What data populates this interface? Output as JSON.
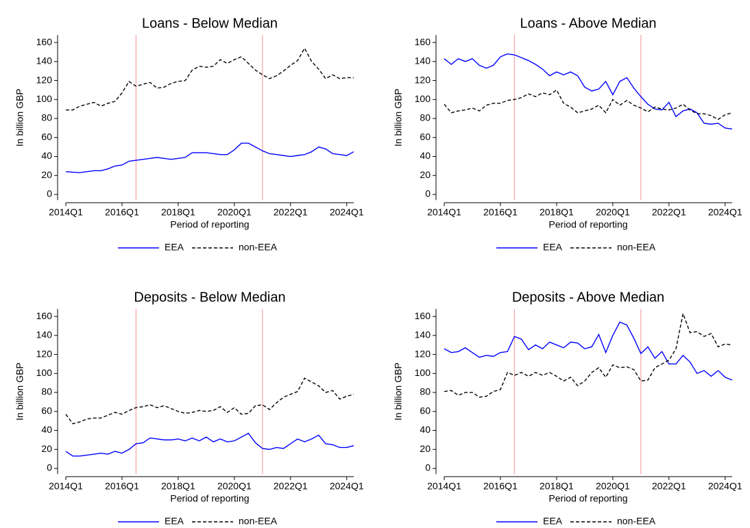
{
  "chart_data": [
    {
      "type": "line",
      "title": "Loans - Below Median",
      "xlabel": "Period of reporting",
      "ylabel": "In billion GBP",
      "x": [
        2014,
        2014.25,
        2014.5,
        2014.75,
        2015,
        2015.25,
        2015.5,
        2015.75,
        2016,
        2016.25,
        2016.5,
        2016.75,
        2017,
        2017.25,
        2017.5,
        2017.75,
        2018,
        2018.25,
        2018.5,
        2018.75,
        2019,
        2019.25,
        2019.5,
        2019.75,
        2020,
        2020.25,
        2020.5,
        2020.75,
        2021,
        2021.25,
        2021.5,
        2021.75,
        2022,
        2022.25,
        2022.5,
        2022.75,
        2023,
        2023.25,
        2023.5,
        2023.75,
        2024,
        2024.25
      ],
      "series": [
        {
          "name": "EEA",
          "color": "#0000ff",
          "linestyle": "solid",
          "values": [
            24,
            23.5,
            23,
            24,
            25,
            25,
            27,
            30,
            31,
            35,
            36,
            37,
            38,
            39,
            38,
            37,
            38,
            39,
            44,
            44,
            44,
            43,
            42,
            42,
            47,
            54,
            54,
            50,
            46,
            43,
            42,
            41,
            40,
            41,
            42,
            45,
            50,
            48,
            43,
            42,
            41,
            45
          ]
        },
        {
          "name": "non-EEA",
          "color": "#000000",
          "linestyle": "dashed",
          "values": [
            89,
            89,
            93,
            95,
            97,
            93,
            96,
            98,
            107,
            119,
            114,
            116,
            118,
            112,
            113,
            117,
            119,
            120,
            131,
            135,
            134,
            135,
            142,
            138,
            142,
            145,
            138,
            131,
            126,
            122,
            125,
            130,
            136,
            141,
            154,
            140,
            132,
            122,
            126,
            122,
            123,
            123
          ]
        }
      ],
      "xlim": [
        2014,
        2024.25
      ],
      "xticks": [
        {
          "value": 2014,
          "label": "2014Q1"
        },
        {
          "value": 2016,
          "label": "2016Q1"
        },
        {
          "value": 2018,
          "label": "2018Q1"
        },
        {
          "value": 2020,
          "label": "2020Q1"
        },
        {
          "value": 2022,
          "label": "2022Q1"
        },
        {
          "value": 2024,
          "label": "2024Q1"
        }
      ],
      "ylim": [
        -6,
        168
      ],
      "yticks": [
        0,
        20,
        40,
        60,
        80,
        100,
        120,
        140,
        160
      ],
      "vlines": [
        2016.5,
        2021
      ],
      "vline_color": "#f5a3a3",
      "grid": false,
      "legend": "bottom"
    },
    {
      "type": "line",
      "title": "Loans - Above Median",
      "xlabel": "Period of reporting",
      "ylabel": "In billion GBP",
      "x": [
        2014,
        2014.25,
        2014.5,
        2014.75,
        2015,
        2015.25,
        2015.5,
        2015.75,
        2016,
        2016.25,
        2016.5,
        2016.75,
        2017,
        2017.25,
        2017.5,
        2017.75,
        2018,
        2018.25,
        2018.5,
        2018.75,
        2019,
        2019.25,
        2019.5,
        2019.75,
        2020,
        2020.25,
        2020.5,
        2020.75,
        2021,
        2021.25,
        2021.5,
        2021.75,
        2022,
        2022.25,
        2022.5,
        2022.75,
        2023,
        2023.25,
        2023.5,
        2023.75,
        2024,
        2024.25
      ],
      "series": [
        {
          "name": "EEA",
          "color": "#0000ff",
          "linestyle": "solid",
          "values": [
            143,
            137,
            143,
            140,
            143,
            136,
            133,
            136,
            145,
            148,
            147,
            144,
            141,
            137,
            132,
            125,
            129,
            126,
            129,
            125,
            113,
            109,
            111,
            119,
            105,
            119,
            123,
            112,
            103,
            95,
            90,
            89,
            97,
            82,
            88,
            90,
            86,
            75,
            74,
            75,
            70,
            69
          ]
        },
        {
          "name": "non-EEA",
          "color": "#000000",
          "linestyle": "dashed",
          "values": [
            95,
            86,
            88,
            89,
            91,
            88,
            94,
            96,
            96,
            99,
            100,
            102,
            106,
            103,
            107,
            105,
            110,
            96,
            92,
            86,
            88,
            90,
            94,
            86,
            100,
            94,
            99,
            94,
            91,
            87,
            92,
            90,
            89,
            91,
            95,
            89,
            85,
            85,
            83,
            79,
            84,
            86
          ]
        }
      ],
      "xlim": [
        2014,
        2024.25
      ],
      "xticks": [
        {
          "value": 2014,
          "label": "2014Q1"
        },
        {
          "value": 2016,
          "label": "2016Q1"
        },
        {
          "value": 2018,
          "label": "2018Q1"
        },
        {
          "value": 2020,
          "label": "2020Q1"
        },
        {
          "value": 2022,
          "label": "2022Q1"
        },
        {
          "value": 2024,
          "label": "2024Q1"
        }
      ],
      "ylim": [
        -6,
        168
      ],
      "yticks": [
        0,
        20,
        40,
        60,
        80,
        100,
        120,
        140,
        160
      ],
      "vlines": [
        2016.5,
        2021
      ],
      "vline_color": "#f5a3a3",
      "grid": false,
      "legend": "bottom"
    },
    {
      "type": "line",
      "title": "Deposits - Below Median",
      "xlabel": "Period of reporting",
      "ylabel": "In billion GBP",
      "x": [
        2014,
        2014.25,
        2014.5,
        2014.75,
        2015,
        2015.25,
        2015.5,
        2015.75,
        2016,
        2016.25,
        2016.5,
        2016.75,
        2017,
        2017.25,
        2017.5,
        2017.75,
        2018,
        2018.25,
        2018.5,
        2018.75,
        2019,
        2019.25,
        2019.5,
        2019.75,
        2020,
        2020.25,
        2020.5,
        2020.75,
        2021,
        2021.25,
        2021.5,
        2021.75,
        2022,
        2022.25,
        2022.5,
        2022.75,
        2023,
        2023.25,
        2023.5,
        2023.75,
        2024,
        2024.25
      ],
      "series": [
        {
          "name": "EEA",
          "color": "#0000ff",
          "linestyle": "solid",
          "values": [
            18,
            13,
            13,
            14,
            15,
            16,
            15,
            18,
            16,
            20,
            26,
            27,
            32,
            31,
            30,
            30,
            31,
            29,
            32,
            29,
            33,
            28,
            31,
            28,
            29,
            33,
            37,
            27,
            21,
            20,
            22,
            21,
            26,
            31,
            28,
            31,
            35,
            26,
            25,
            22,
            22,
            24
          ]
        },
        {
          "name": "non-EEA",
          "color": "#000000",
          "linestyle": "dashed",
          "values": [
            57,
            47,
            49,
            52,
            53,
            53,
            56,
            59,
            57,
            61,
            64,
            65,
            67,
            64,
            66,
            63,
            60,
            58,
            59,
            61,
            60,
            61,
            65,
            59,
            64,
            57,
            58,
            66,
            67,
            62,
            69,
            75,
            78,
            81,
            95,
            91,
            87,
            80,
            82,
            73,
            76,
            78
          ]
        }
      ],
      "xlim": [
        2014,
        2024.25
      ],
      "xticks": [
        {
          "value": 2014,
          "label": "2014Q1"
        },
        {
          "value": 2016,
          "label": "2016Q1"
        },
        {
          "value": 2018,
          "label": "2018Q1"
        },
        {
          "value": 2020,
          "label": "2020Q1"
        },
        {
          "value": 2022,
          "label": "2022Q1"
        },
        {
          "value": 2024,
          "label": "2024Q1"
        }
      ],
      "ylim": [
        -6,
        168
      ],
      "yticks": [
        0,
        20,
        40,
        60,
        80,
        100,
        120,
        140,
        160
      ],
      "vlines": [
        2016.5,
        2021
      ],
      "vline_color": "#f5a3a3",
      "grid": false,
      "legend": "bottom"
    },
    {
      "type": "line",
      "title": "Deposits - Above Median",
      "xlabel": "Period of reporting",
      "ylabel": "In billion GBP",
      "x": [
        2014,
        2014.25,
        2014.5,
        2014.75,
        2015,
        2015.25,
        2015.5,
        2015.75,
        2016,
        2016.25,
        2016.5,
        2016.75,
        2017,
        2017.25,
        2017.5,
        2017.75,
        2018,
        2018.25,
        2018.5,
        2018.75,
        2019,
        2019.25,
        2019.5,
        2019.75,
        2020,
        2020.25,
        2020.5,
        2020.75,
        2021,
        2021.25,
        2021.5,
        2021.75,
        2022,
        2022.25,
        2022.5,
        2022.75,
        2023,
        2023.25,
        2023.5,
        2023.75,
        2024,
        2024.25
      ],
      "series": [
        {
          "name": "EEA",
          "color": "#0000ff",
          "linestyle": "solid",
          "values": [
            126,
            122,
            123,
            127,
            122,
            117,
            119,
            118,
            122,
            123,
            139,
            136,
            125,
            130,
            126,
            133,
            130,
            127,
            133,
            132,
            126,
            128,
            141,
            122,
            140,
            154,
            151,
            137,
            121,
            128,
            116,
            123,
            110,
            110,
            119,
            112,
            100,
            103,
            97,
            103,
            96,
            93
          ]
        },
        {
          "name": "non-EEA",
          "color": "#000000",
          "linestyle": "dashed",
          "values": [
            81,
            82,
            77,
            80,
            80,
            75,
            76,
            81,
            83,
            101,
            98,
            101,
            97,
            101,
            98,
            101,
            97,
            92,
            96,
            87,
            92,
            101,
            106,
            96,
            109,
            106,
            107,
            104,
            92,
            93,
            106,
            110,
            114,
            126,
            163,
            143,
            144,
            139,
            142,
            128,
            131,
            130
          ]
        }
      ],
      "xlim": [
        2014,
        2024.25
      ],
      "xticks": [
        {
          "value": 2014,
          "label": "2014Q1"
        },
        {
          "value": 2016,
          "label": "2016Q1"
        },
        {
          "value": 2018,
          "label": "2018Q1"
        },
        {
          "value": 2020,
          "label": "2020Q1"
        },
        {
          "value": 2022,
          "label": "2022Q1"
        },
        {
          "value": 2024,
          "label": "2024Q1"
        }
      ],
      "ylim": [
        -6,
        168
      ],
      "yticks": [
        0,
        20,
        40,
        60,
        80,
        100,
        120,
        140,
        160
      ],
      "vlines": [
        2016.5,
        2021
      ],
      "vline_color": "#f5a3a3",
      "grid": false,
      "legend": "bottom"
    }
  ]
}
